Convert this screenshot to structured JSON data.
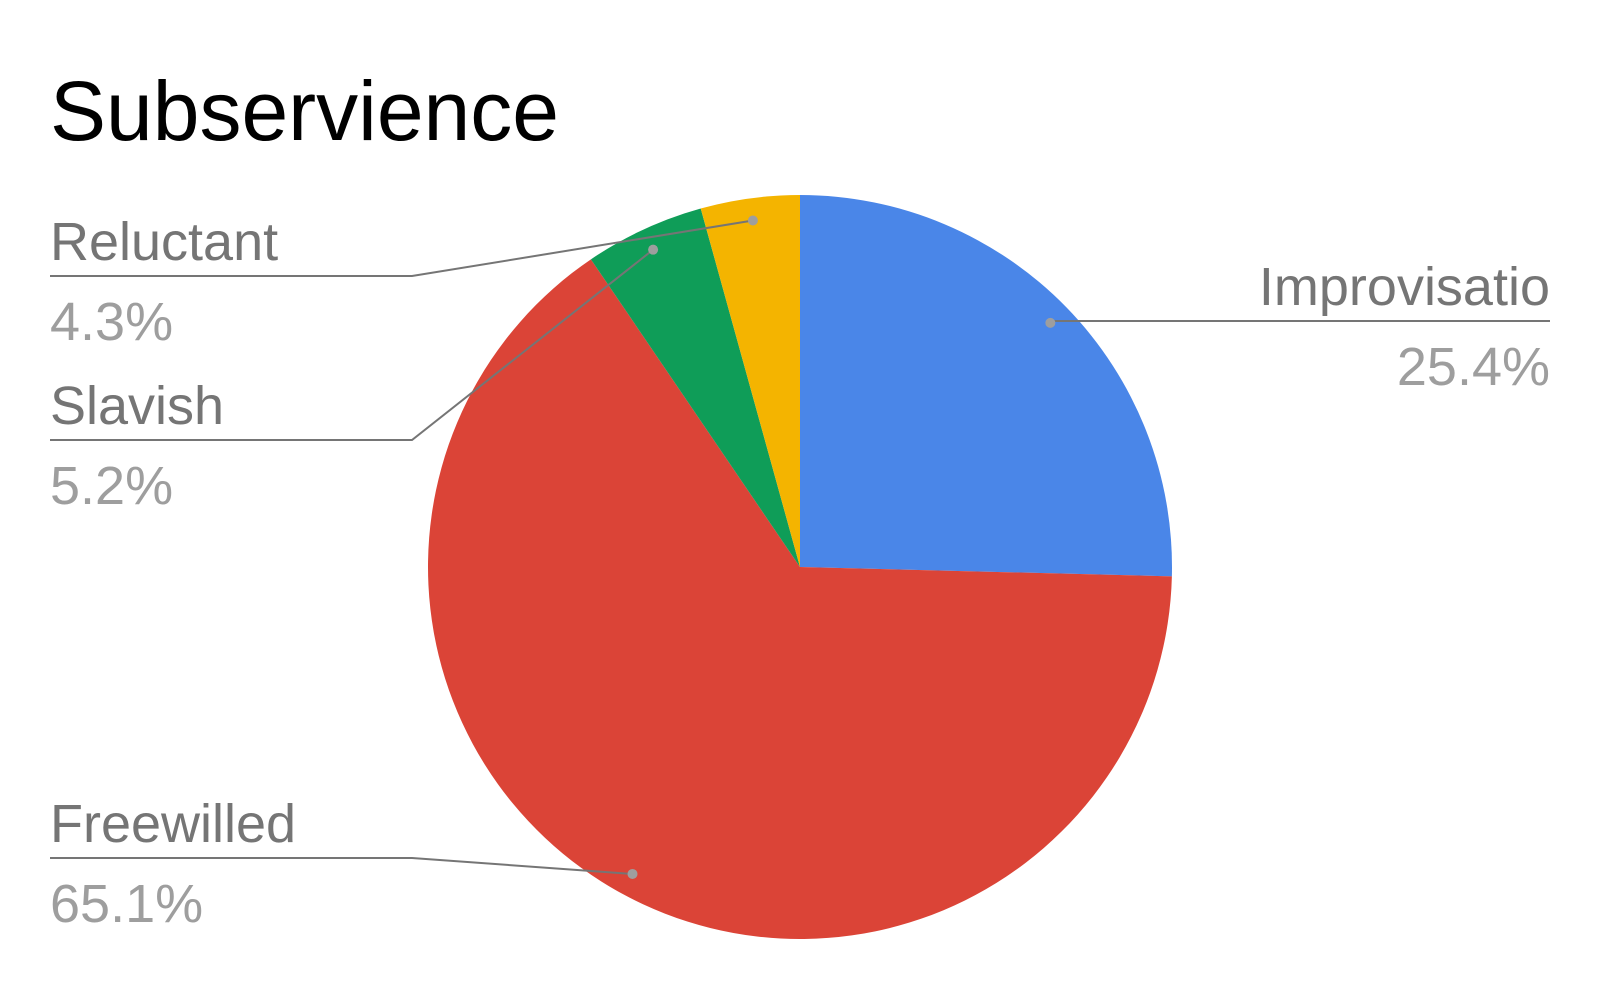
{
  "chart_data": {
    "type": "pie",
    "title": "Subservience",
    "categories": [
      "Improvisatio",
      "Freewilled",
      "Slavish",
      "Reluctant"
    ],
    "values": [
      25.4,
      65.1,
      5.2,
      4.3
    ],
    "value_labels": [
      "25.4%",
      "65.1%",
      "5.2%",
      "4.3%"
    ],
    "colors": [
      "#4a86e8",
      "#db4437",
      "#0f9d58",
      "#f4b400"
    ]
  }
}
